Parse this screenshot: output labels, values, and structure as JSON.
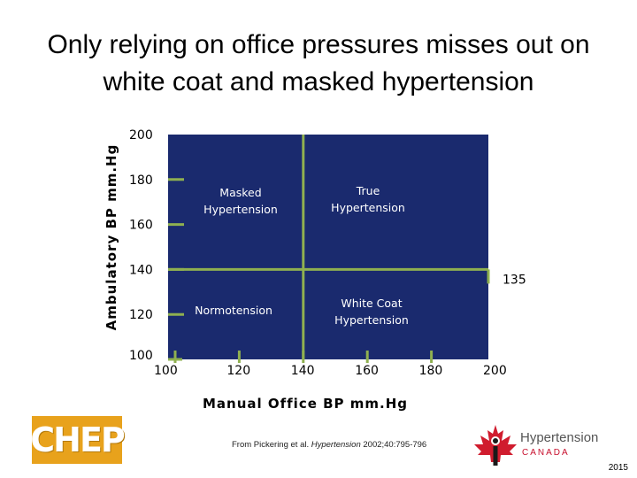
{
  "slide": {
    "title_line1": "Only relying on office pressures misses out on",
    "title_line2": "white coat and masked hypertension",
    "citation_prefix": "From Pickering et al. ",
    "citation_journal": "Hypertension",
    "citation_suffix": " 2002;40:795-796",
    "year": "2015"
  },
  "logos": {
    "chep_text": "CHEP",
    "hypertension_name": "Hypertension",
    "hypertension_sub": "CANADA"
  },
  "chart_data": {
    "type": "quadrant",
    "xlabel": "Manual Office BP mm.Hg",
    "ylabel": "Ambulatory BP mm.Hg",
    "x_ticks": [
      "100",
      "120",
      "140",
      "160",
      "180",
      "200"
    ],
    "y_ticks": [
      "100",
      "120",
      "140",
      "160",
      "180",
      "200"
    ],
    "xlim": [
      100,
      200
    ],
    "ylim": [
      100,
      200
    ],
    "vertical_divider_x": 140,
    "horizontal_divider_y": 135,
    "horizontal_divider_label": "135",
    "quadrants": [
      {
        "label_line1": "Masked",
        "label_line2": "Hypertension",
        "region": "upper-left"
      },
      {
        "label_line1": "True",
        "label_line2": "Hypertension",
        "region": "upper-right"
      },
      {
        "label_line1": "Normotension",
        "label_line2": "",
        "region": "lower-left"
      },
      {
        "label_line1": "White Coat",
        "label_line2": "Hypertension",
        "region": "lower-right"
      }
    ],
    "colors": {
      "background": "#1a2a6e",
      "lines": "#8fb050",
      "quadrant_text": "#ffffff"
    },
    "grid": false
  }
}
